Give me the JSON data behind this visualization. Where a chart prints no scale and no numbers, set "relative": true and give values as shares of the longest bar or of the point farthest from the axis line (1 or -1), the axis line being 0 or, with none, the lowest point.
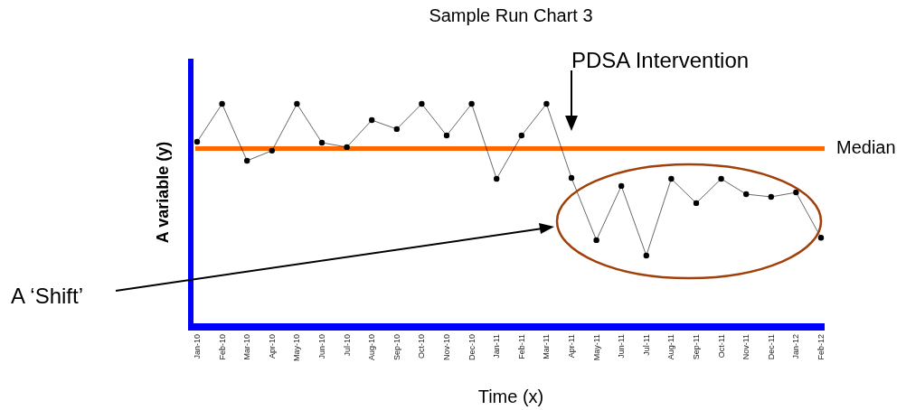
{
  "chart_data": {
    "type": "line",
    "title": "Sample Run Chart 3",
    "xlabel": "Time (x)",
    "ylabel": "A variable (y)",
    "relative": true,
    "categories": [
      "Jan-10",
      "Feb-10",
      "Mar-10",
      "Apr-10",
      "May-10",
      "Jun-10",
      "Jul-10",
      "Aug-10",
      "Sep-10",
      "Oct-10",
      "Nov-10",
      "Dec-10",
      "Jan-11",
      "Feb-11",
      "Mar-11",
      "Apr-11",
      "May-11",
      "Jun-11",
      "Jul-11",
      "Aug-11",
      "Sep-11",
      "Oct-11",
      "Nov-11",
      "Dec-11",
      "Jan-12",
      "Feb-12"
    ],
    "series": [
      {
        "color": "#000000",
        "values": [
          0.83,
          1,
          0.745,
          0.79,
          1,
          0.826,
          0.806,
          0.927,
          0.887,
          1,
          0.858,
          1,
          0.664,
          0.858,
          1,
          0.668,
          0.389,
          0.632,
          0.32,
          0.664,
          0.555,
          0.664,
          0.595,
          0.583,
          0.603,
          0.4
        ]
      }
    ],
    "ref_lines": [
      {
        "axis": "y",
        "value": 0.8,
        "label": "Median",
        "color": "#ff6600"
      }
    ],
    "annotations": [
      "PDSA Intervention",
      "A ‘Shift’"
    ],
    "marker": "circle",
    "line_style": "solid"
  }
}
